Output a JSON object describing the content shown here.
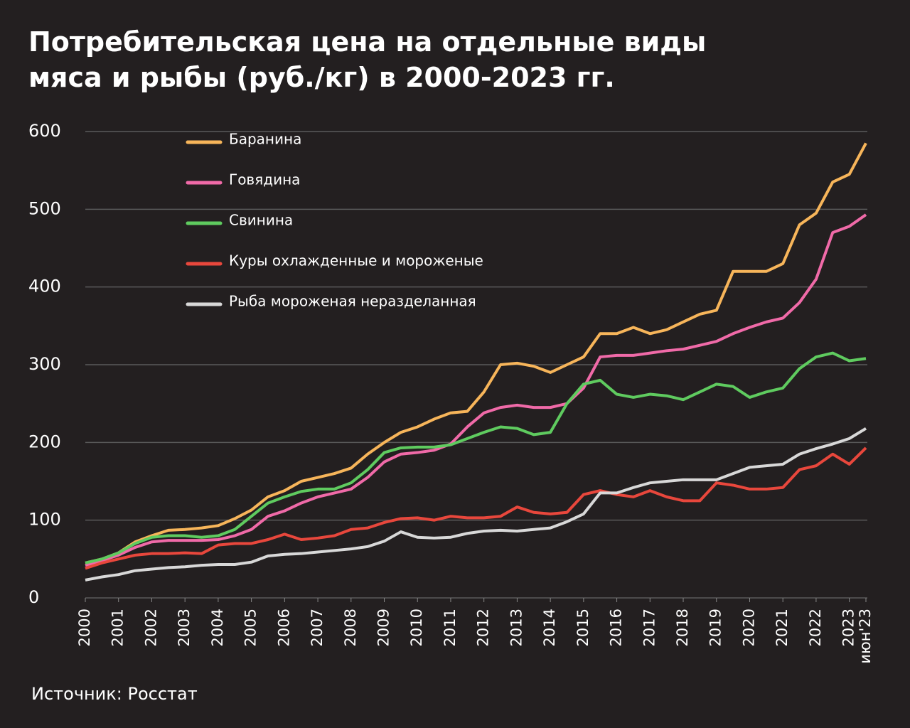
{
  "chart_data": {
    "type": "line",
    "title": "Потребительская цена на отдельные виды мяса и рыбы (руб./кг) в 2000-2023 гг.",
    "source": "Источник: Росстат",
    "x": [
      2000,
      2000.5,
      2001,
      2001.5,
      2002,
      2002.5,
      2003,
      2003.5,
      2004,
      2004.5,
      2005,
      2005.5,
      2006,
      2006.5,
      2007,
      2007.5,
      2008,
      2008.5,
      2009,
      2009.5,
      2010,
      2010.5,
      2011,
      2011.5,
      2012,
      2012.5,
      2013,
      2013.5,
      2014,
      2014.5,
      2015,
      2015.5,
      2016,
      2016.5,
      2017,
      2017.5,
      2018,
      2018.5,
      2019,
      2019.5,
      2020,
      2020.5,
      2021,
      2021.5,
      2022,
      2022.5,
      2023,
      2023.5
    ],
    "series": [
      {
        "name": "Баранина",
        "color": "#f7b55a",
        "values": [
          45,
          50,
          58,
          72,
          80,
          87,
          88,
          90,
          93,
          102,
          113,
          130,
          138,
          150,
          155,
          160,
          167,
          185,
          200,
          213,
          220,
          230,
          238,
          240,
          265,
          300,
          302,
          298,
          290,
          300,
          310,
          340,
          340,
          348,
          340,
          345,
          355,
          365,
          370,
          420,
          420,
          420,
          430,
          480,
          495,
          535,
          545,
          585
        ]
      },
      {
        "name": "Говядина",
        "color": "#f06aa8",
        "values": [
          42,
          48,
          55,
          65,
          72,
          74,
          74,
          74,
          75,
          80,
          88,
          105,
          112,
          122,
          130,
          135,
          140,
          155,
          175,
          185,
          187,
          190,
          198,
          220,
          238,
          245,
          248,
          245,
          245,
          250,
          270,
          310,
          312,
          312,
          315,
          318,
          320,
          325,
          330,
          340,
          348,
          355,
          360,
          380,
          410,
          470,
          478,
          493
        ]
      },
      {
        "name": "Свинина",
        "color": "#5fcb5f",
        "values": [
          45,
          50,
          58,
          70,
          78,
          80,
          80,
          78,
          80,
          88,
          105,
          122,
          130,
          137,
          140,
          140,
          148,
          165,
          187,
          193,
          194,
          194,
          197,
          205,
          213,
          220,
          218,
          210,
          213,
          250,
          275,
          280,
          262,
          258,
          262,
          260,
          255,
          265,
          275,
          272,
          258,
          265,
          270,
          295,
          310,
          315,
          305,
          308
        ]
      },
      {
        "name": "Куры охлажденные и мороженые",
        "color": "#e8473c",
        "values": [
          38,
          45,
          50,
          55,
          57,
          57,
          58,
          57,
          68,
          70,
          70,
          75,
          82,
          75,
          77,
          80,
          88,
          90,
          97,
          102,
          103,
          100,
          105,
          103,
          103,
          105,
          117,
          110,
          108,
          110,
          133,
          138,
          133,
          130,
          138,
          130,
          125,
          125,
          148,
          145,
          140,
          140,
          142,
          165,
          170,
          185,
          172,
          193
        ]
      },
      {
        "name": "Рыба мороженая неразделанная",
        "color": "#d8d8d8",
        "values": [
          23,
          27,
          30,
          35,
          37,
          39,
          40,
          42,
          43,
          43,
          46,
          54,
          56,
          57,
          59,
          61,
          63,
          66,
          73,
          85,
          78,
          77,
          78,
          83,
          86,
          87,
          86,
          88,
          90,
          98,
          108,
          135,
          135,
          142,
          148,
          150,
          152,
          152,
          152,
          160,
          168,
          170,
          172,
          185,
          192,
          198,
          205,
          218
        ]
      }
    ],
    "xlim": [
      2000,
      2023.5
    ],
    "xticks": [
      2000,
      2001,
      2002,
      2003,
      2004,
      2005,
      2006,
      2007,
      2008,
      2009,
      2010,
      2011,
      2012,
      2013,
      2014,
      2015,
      2016,
      2017,
      2018,
      2019,
      2020,
      2021,
      2022,
      2023,
      {
        "value": 2023.5,
        "label": "июн'23"
      }
    ],
    "ylim": [
      0,
      600
    ],
    "yticks": [
      0,
      100,
      200,
      300,
      400,
      500,
      600
    ],
    "grid": true
  }
}
